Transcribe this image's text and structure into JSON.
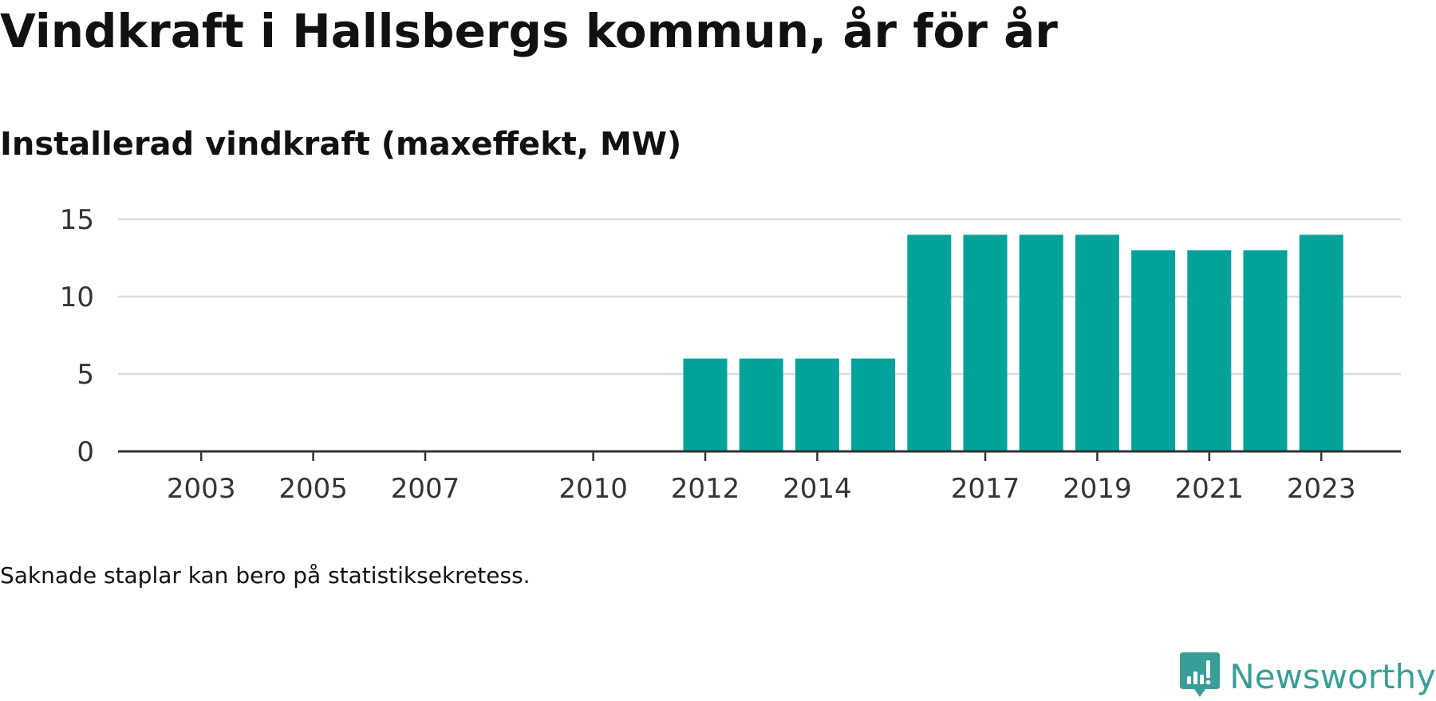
{
  "header": {
    "title": "Vindkraft i Hallsbergs kommun, år för år",
    "subtitle": "Installerad vindkraft (maxeffekt, MW)"
  },
  "footer": {
    "note": "Saknade staplar kan bero på statistiksekretess.",
    "brand": "Newsworthy"
  },
  "colors": {
    "bar": "#00a29a",
    "grid": "#dddddd",
    "axis": "#333333",
    "brand": "#3a9e98"
  },
  "chart_data": {
    "type": "bar",
    "title": "Vindkraft i Hallsbergs kommun, år för år",
    "subtitle": "Installerad vindkraft (maxeffekt, MW)",
    "xlabel": "",
    "ylabel": "",
    "categories": [
      2002,
      2003,
      2004,
      2005,
      2006,
      2007,
      2008,
      2009,
      2010,
      2011,
      2012,
      2013,
      2014,
      2015,
      2016,
      2017,
      2018,
      2019,
      2020,
      2021,
      2022,
      2023
    ],
    "values": [
      null,
      null,
      null,
      null,
      null,
      null,
      null,
      null,
      null,
      null,
      6,
      6,
      6,
      6,
      14,
      14,
      14,
      14,
      13,
      13,
      13,
      14
    ],
    "x_tick_labels": [
      "2003",
      "2005",
      "2007",
      "2010",
      "2012",
      "2014",
      "2017",
      "2019",
      "2021",
      "2023"
    ],
    "y_ticks": [
      0,
      5,
      10,
      15
    ],
    "ylim": [
      0,
      15
    ],
    "grid": true
  }
}
